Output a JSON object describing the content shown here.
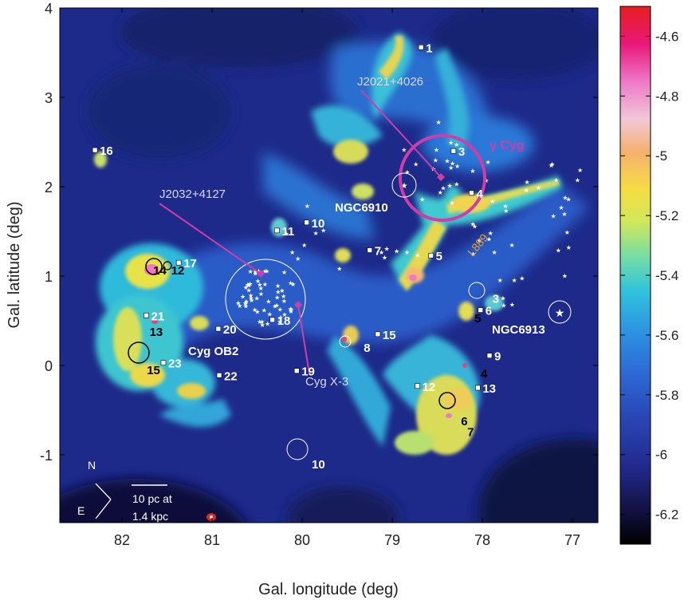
{
  "figure": {
    "xlabel": "Gal. longitude (deg)",
    "ylabel": "Gal. latitude (deg)",
    "xlim": [
      82.5,
      76.5
    ],
    "ylim": [
      -2.0,
      4.0
    ],
    "x_ticks": [
      "82",
      "81",
      "80",
      "79",
      "78",
      "77"
    ],
    "y_ticks": [
      "-1",
      "0",
      "1",
      "2",
      "3",
      "4"
    ]
  },
  "colorbar": {
    "ticks": [
      "-4.6",
      "-4.8",
      "-5",
      "-5.2",
      "-5.4",
      "-5.6",
      "-5.8",
      "-6",
      "-6.2"
    ],
    "range": [
      -6.3,
      -4.5
    ],
    "colors": [
      "#000000",
      "#1a1a5a",
      "#2a3aa0",
      "#2f5ec8",
      "#2d8ee0",
      "#2fc0e0",
      "#5de0b0",
      "#c8e85a",
      "#f5e040",
      "#f7b070",
      "#f5c8d8",
      "#f068c0",
      "#e8107a",
      "#e82020"
    ]
  },
  "annotations": {
    "gamma_cyg": "γ Cyg",
    "j2021": "J2021+4026",
    "j2032": "J2032+4127",
    "ngc6910": "NGC6910",
    "ngc6913": "NGC6913",
    "cyg_ob2": "Cyg OB2",
    "cyg_x3": "Cyg X-3",
    "l889": "L889",
    "compass_n": "N",
    "compass_e": "E",
    "scalebar_line1": "10 pc at",
    "scalebar_line2": "1.4 kpc"
  },
  "square_labels": [
    {
      "text": "1",
      "l": 78.68,
      "b": 3.56
    },
    {
      "text": "3",
      "l": 78.32,
      "b": 2.4
    },
    {
      "text": "4",
      "l": 78.12,
      "b": 1.93
    },
    {
      "text": "5",
      "l": 78.57,
      "b": 1.23
    },
    {
      "text": "6",
      "l": 78.02,
      "b": 0.62
    },
    {
      "text": "7",
      "l": 79.25,
      "b": 1.29
    },
    {
      "text": "9",
      "l": 77.92,
      "b": 0.11
    },
    {
      "text": "10",
      "l": 79.95,
      "b": 1.6
    },
    {
      "text": "11",
      "l": 80.28,
      "b": 1.51
    },
    {
      "text": "12",
      "l": 78.72,
      "b": -0.23
    },
    {
      "text": "13",
      "l": 78.05,
      "b": -0.25
    },
    {
      "text": "15",
      "l": 79.16,
      "b": 0.35
    },
    {
      "text": "16",
      "l": 82.3,
      "b": 2.41
    },
    {
      "text": "17",
      "l": 81.37,
      "b": 1.15
    },
    {
      "text": "18",
      "l": 80.33,
      "b": 0.51
    },
    {
      "text": "19",
      "l": 80.06,
      "b": -0.06
    },
    {
      "text": "20",
      "l": 80.93,
      "b": 0.41
    },
    {
      "text": "21",
      "l": 81.73,
      "b": 0.56
    },
    {
      "text": "22",
      "l": 80.92,
      "b": -0.11
    },
    {
      "text": "23",
      "l": 81.54,
      "b": 0.03
    }
  ],
  "black_labels": [
    {
      "text": "14",
      "l": 81.58,
      "b": 1.02
    },
    {
      "text": "12",
      "l": 81.38,
      "b": 1.02
    },
    {
      "text": "13",
      "l": 81.62,
      "b": 0.33
    },
    {
      "text": "15",
      "l": 81.65,
      "b": -0.1
    },
    {
      "text": "4",
      "l": 77.98,
      "b": -0.14
    },
    {
      "text": "5",
      "l": 78.05,
      "b": 0.48
    },
    {
      "text": "6",
      "l": 78.2,
      "b": -0.67
    },
    {
      "text": "7",
      "l": 78.13,
      "b": -0.79
    }
  ],
  "white_labels": [
    {
      "text": "3",
      "l": 77.85,
      "b": 0.7
    },
    {
      "text": "8",
      "l": 79.28,
      "b": 0.15
    },
    {
      "text": "10",
      "l": 79.82,
      "b": -1.15
    }
  ]
}
